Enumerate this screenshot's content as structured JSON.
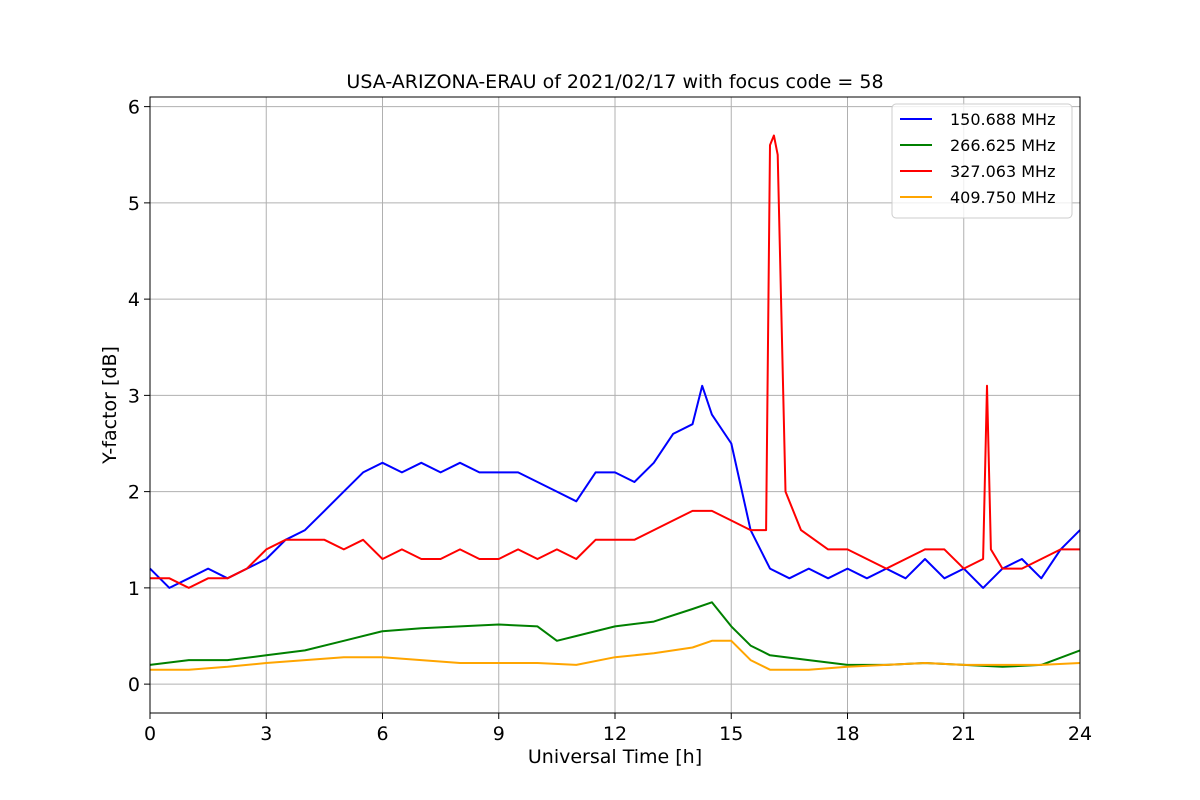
{
  "chart_data": {
    "type": "line",
    "title": "USA-ARIZONA-ERAU of 2021/02/17 with focus code = 58",
    "xlabel": "Universal Time [h]",
    "ylabel": "Y-factor [dB]",
    "xlim": [
      0,
      24
    ],
    "ylim": [
      -0.3,
      6.1
    ],
    "xticks": [
      0,
      3,
      6,
      9,
      12,
      15,
      18,
      21,
      24
    ],
    "yticks": [
      0,
      1,
      2,
      3,
      4,
      5,
      6
    ],
    "grid": true,
    "legend_position": "top-right",
    "series": [
      {
        "name": "150.688 MHz",
        "color": "#0000ff",
        "x": [
          0,
          0.5,
          1,
          1.5,
          2,
          2.5,
          3,
          3.5,
          4,
          4.5,
          5,
          5.5,
          6,
          6.5,
          7,
          7.5,
          8,
          8.5,
          9,
          9.5,
          10,
          10.5,
          11,
          11.5,
          12,
          12.5,
          13,
          13.5,
          14,
          14.25,
          14.5,
          15,
          15.5,
          16,
          16.5,
          17,
          17.5,
          18,
          18.5,
          19,
          19.5,
          20,
          20.5,
          21,
          21.5,
          22,
          22.5,
          23,
          23.5,
          24
        ],
        "y": [
          1.2,
          1.0,
          1.1,
          1.2,
          1.1,
          1.2,
          1.3,
          1.5,
          1.6,
          1.8,
          2.0,
          2.2,
          2.3,
          2.2,
          2.3,
          2.2,
          2.3,
          2.2,
          2.2,
          2.2,
          2.1,
          2.0,
          1.9,
          2.2,
          2.2,
          2.1,
          2.3,
          2.6,
          2.7,
          3.1,
          2.8,
          2.5,
          1.6,
          1.2,
          1.1,
          1.2,
          1.1,
          1.2,
          1.1,
          1.2,
          1.1,
          1.3,
          1.1,
          1.2,
          1.0,
          1.2,
          1.3,
          1.1,
          1.4,
          1.6
        ]
      },
      {
        "name": "266.625 MHz",
        "color": "#008000",
        "x": [
          0,
          1,
          2,
          3,
          4,
          5,
          6,
          7,
          8,
          9,
          10,
          10.5,
          11,
          12,
          13,
          14,
          14.5,
          15,
          15.5,
          16,
          17,
          18,
          19,
          20,
          21,
          22,
          23,
          24
        ],
        "y": [
          0.2,
          0.25,
          0.25,
          0.3,
          0.35,
          0.45,
          0.55,
          0.58,
          0.6,
          0.62,
          0.6,
          0.45,
          0.5,
          0.6,
          0.65,
          0.78,
          0.85,
          0.6,
          0.4,
          0.3,
          0.25,
          0.2,
          0.2,
          0.22,
          0.2,
          0.18,
          0.2,
          0.35
        ]
      },
      {
        "name": "327.063 MHz",
        "color": "#ff0000",
        "x": [
          0,
          0.5,
          1,
          1.5,
          2,
          2.5,
          3,
          3.5,
          4,
          4.5,
          5,
          5.5,
          6,
          6.5,
          7,
          7.5,
          8,
          8.5,
          9,
          9.5,
          10,
          10.5,
          11,
          11.5,
          12,
          12.5,
          13,
          13.5,
          14,
          14.5,
          15,
          15.5,
          15.9,
          16.0,
          16.1,
          16.2,
          16.4,
          16.8,
          17.5,
          18,
          18.5,
          19,
          19.5,
          20,
          20.5,
          21,
          21.5,
          21.6,
          21.7,
          22,
          22.5,
          23,
          23.5,
          24
        ],
        "y": [
          1.1,
          1.1,
          1.0,
          1.1,
          1.1,
          1.2,
          1.4,
          1.5,
          1.5,
          1.5,
          1.4,
          1.5,
          1.3,
          1.4,
          1.3,
          1.3,
          1.4,
          1.3,
          1.3,
          1.4,
          1.3,
          1.4,
          1.3,
          1.5,
          1.5,
          1.5,
          1.6,
          1.7,
          1.8,
          1.8,
          1.7,
          1.6,
          1.6,
          5.6,
          5.7,
          5.5,
          2.0,
          1.6,
          1.4,
          1.4,
          1.3,
          1.2,
          1.3,
          1.4,
          1.4,
          1.2,
          1.3,
          3.1,
          1.4,
          1.2,
          1.2,
          1.3,
          1.4,
          1.4
        ]
      },
      {
        "name": "409.750 MHz",
        "color": "#ffa500",
        "x": [
          0,
          1,
          2,
          3,
          4,
          5,
          6,
          7,
          8,
          9,
          10,
          11,
          12,
          13,
          14,
          14.5,
          15,
          15.5,
          16,
          17,
          18,
          19,
          20,
          21,
          22,
          23,
          24
        ],
        "y": [
          0.15,
          0.15,
          0.18,
          0.22,
          0.25,
          0.28,
          0.28,
          0.25,
          0.22,
          0.22,
          0.22,
          0.2,
          0.28,
          0.32,
          0.38,
          0.45,
          0.45,
          0.25,
          0.15,
          0.15,
          0.18,
          0.2,
          0.22,
          0.2,
          0.2,
          0.2,
          0.22
        ]
      }
    ]
  }
}
